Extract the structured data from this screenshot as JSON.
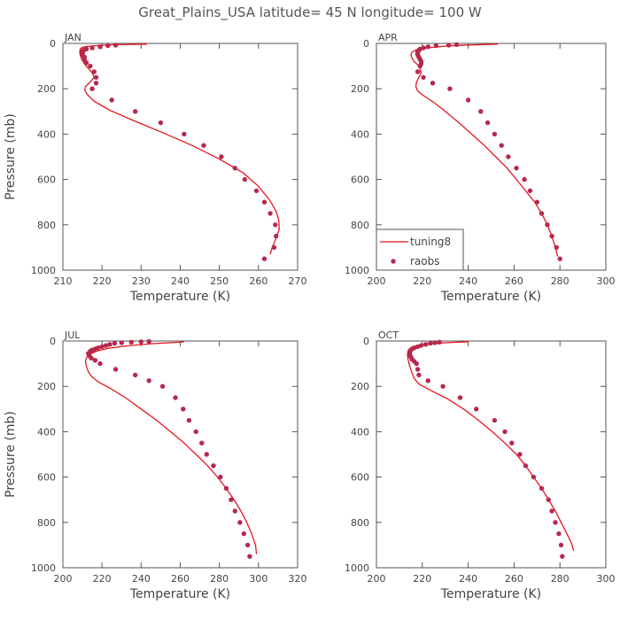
{
  "figure": {
    "title": "Great_Plains_USA   latitude= 45 N longitude= 100 W"
  },
  "legend": {
    "model_label": "tuning8",
    "obs_label": "raobs",
    "model_color": "#e8141e",
    "obs_color": "#b5294f"
  },
  "chart_data": [
    {
      "type": "line",
      "panel": "JAN",
      "xlabel": "Temperature (K)",
      "ylabel": "Pressure (mb)",
      "xlim": [
        210,
        270
      ],
      "ylim": [
        1000,
        0
      ],
      "xticks": [
        210,
        220,
        230,
        240,
        250,
        260,
        270
      ],
      "yticks": [
        0,
        200,
        400,
        600,
        800,
        1000
      ],
      "series": [
        {
          "name": "tuning8",
          "style": "line",
          "x": [
            263,
            263.5,
            264.5,
            265.3,
            265.2,
            264.5,
            262.8,
            260,
            256,
            250,
            243,
            235,
            228,
            222,
            218,
            216.2,
            215.6,
            215.8,
            217,
            218,
            217.5,
            216.5,
            215.5,
            214.8,
            214.4,
            214.3,
            214.5,
            215.5,
            218,
            223,
            231.5
          ],
          "y": [
            930,
            900,
            860,
            820,
            780,
            740,
            690,
            630,
            570,
            510,
            450,
            390,
            340,
            295,
            255,
            225,
            205,
            190,
            170,
            150,
            130,
            110,
            90,
            70,
            50,
            35,
            22,
            15,
            10,
            6,
            3
          ]
        },
        {
          "name": "raobs",
          "style": "points",
          "x": [
            261.5,
            264,
            264.5,
            264.3,
            263,
            261.5,
            259.5,
            256.5,
            254,
            250.5,
            246,
            241,
            235,
            228.5,
            222.5,
            217.5,
            218.5,
            218.5,
            218,
            217,
            216,
            215.5,
            215.5,
            215,
            215,
            215,
            215,
            215.3,
            216,
            217.5,
            219.5,
            221.5,
            223.5
          ],
          "y": [
            950,
            900,
            850,
            800,
            750,
            700,
            650,
            600,
            550,
            500,
            450,
            400,
            350,
            300,
            250,
            200,
            175,
            150,
            125,
            100,
            85,
            70,
            60,
            50,
            45,
            40,
            35,
            30,
            25,
            20,
            15,
            10,
            8
          ]
        }
      ]
    },
    {
      "type": "line",
      "panel": "APR",
      "xlabel": "Temperature (K)",
      "ylabel": "",
      "xlim": [
        200,
        300
      ],
      "ylim": [
        1000,
        0
      ],
      "xticks": [
        200,
        220,
        240,
        260,
        280,
        300
      ],
      "yticks": [
        0,
        200,
        400,
        600,
        800,
        1000
      ],
      "series": [
        {
          "name": "tuning8",
          "style": "line",
          "x": [
            279,
            278,
            276.5,
            274.5,
            272,
            269,
            265,
            261,
            257,
            252,
            247,
            241.5,
            236,
            230,
            225,
            220.5,
            218,
            217.2,
            217.5,
            218.5,
            219.5,
            219,
            218,
            216.5,
            215.5,
            215,
            215.5,
            217.5,
            222,
            230,
            240,
            253
          ],
          "y": [
            940,
            900,
            850,
            800,
            750,
            700,
            650,
            600,
            550,
            500,
            450,
            400,
            350,
            300,
            260,
            230,
            210,
            190,
            170,
            150,
            130,
            110,
            95,
            80,
            65,
            50,
            38,
            28,
            20,
            12,
            7,
            3
          ]
        },
        {
          "name": "raobs",
          "style": "points",
          "x": [
            280,
            278.5,
            276.5,
            274.5,
            272,
            270,
            267,
            264.5,
            261,
            257.5,
            254.5,
            251.5,
            248.5,
            245.5,
            240,
            232,
            224.5,
            220.5,
            218,
            219,
            219.5,
            219.5,
            219,
            218.5,
            218,
            218,
            218,
            218,
            218.5,
            219,
            220.5,
            222.5,
            226,
            231.5,
            235
          ],
          "y": [
            950,
            900,
            850,
            800,
            750,
            700,
            650,
            600,
            550,
            500,
            450,
            400,
            350,
            300,
            250,
            200,
            175,
            150,
            125,
            100,
            90,
            80,
            70,
            60,
            50,
            45,
            40,
            35,
            30,
            25,
            20,
            15,
            10,
            8,
            5
          ]
        }
      ]
    },
    {
      "type": "line",
      "panel": "JUL",
      "xlabel": "Temperature (K)",
      "ylabel": "Pressure (mb)",
      "xlim": [
        200,
        320
      ],
      "ylim": [
        1000,
        0
      ],
      "xticks": [
        200,
        220,
        240,
        260,
        280,
        300,
        320
      ],
      "yticks": [
        0,
        200,
        400,
        600,
        800,
        1000
      ],
      "series": [
        {
          "name": "tuning8",
          "style": "line",
          "x": [
            299,
            298.5,
            296.5,
            294,
            291,
            287.5,
            283.5,
            279,
            274,
            268,
            262,
            255,
            248,
            240,
            232,
            224.5,
            218,
            214.5,
            213,
            212.3,
            211.8,
            211.5,
            212,
            213.5,
            217,
            223,
            232,
            245,
            262
          ],
          "y": [
            940,
            900,
            850,
            800,
            750,
            700,
            650,
            600,
            550,
            500,
            450,
            400,
            350,
            300,
            250,
            210,
            180,
            155,
            135,
            120,
            105,
            90,
            75,
            60,
            45,
            33,
            22,
            12,
            4
          ]
        },
        {
          "name": "raobs",
          "style": "points",
          "x": [
            295.5,
            294.5,
            292.5,
            290.5,
            288,
            286,
            283.5,
            280.5,
            277,
            273.5,
            271,
            268,
            264.5,
            261.5,
            257.5,
            251,
            244,
            237,
            227,
            219,
            216.5,
            214.5,
            213.5,
            213,
            214,
            215,
            216.5,
            218,
            220,
            222,
            224,
            226.5,
            230,
            235,
            240,
            244
          ],
          "y": [
            950,
            900,
            850,
            800,
            750,
            700,
            650,
            600,
            550,
            500,
            450,
            400,
            350,
            300,
            250,
            200,
            175,
            150,
            125,
            100,
            85,
            75,
            65,
            55,
            45,
            40,
            35,
            30,
            25,
            20,
            15,
            10,
            8,
            5,
            3,
            2
          ]
        }
      ]
    },
    {
      "type": "line",
      "panel": "OCT",
      "xlabel": "Temperature (K)",
      "ylabel": "",
      "xlim": [
        200,
        300
      ],
      "ylim": [
        1000,
        0
      ],
      "xticks": [
        200,
        220,
        240,
        260,
        280,
        300
      ],
      "yticks": [
        0,
        200,
        400,
        600,
        800,
        1000
      ],
      "series": [
        {
          "name": "tuning8",
          "style": "line",
          "x": [
            286,
            285,
            283,
            280.5,
            278,
            275,
            272,
            268.5,
            265,
            261,
            256,
            250.5,
            244.5,
            238,
            231,
            224,
            218.5,
            216.5,
            215.5,
            214.8,
            214.2,
            213.8,
            213.5,
            213.8,
            215,
            217.5,
            222,
            230,
            240
          ],
          "y": [
            925,
            890,
            850,
            800,
            750,
            700,
            650,
            600,
            550,
            500,
            450,
            400,
            350,
            300,
            255,
            220,
            190,
            165,
            140,
            120,
            100,
            80,
            60,
            45,
            32,
            22,
            14,
            8,
            3
          ]
        },
        {
          "name": "raobs",
          "style": "points",
          "x": [
            281,
            280.5,
            279.5,
            278,
            276.5,
            275,
            272,
            268.5,
            265,
            262.5,
            259,
            256,
            251.5,
            243.5,
            236.5,
            229,
            222.5,
            218.5,
            218,
            217.5,
            216.5,
            215.5,
            215,
            214.5,
            214.5,
            214.5,
            215,
            215.5,
            216.5,
            218,
            219.5,
            221.5,
            223.5,
            225.5,
            227.5
          ],
          "y": [
            950,
            900,
            850,
            800,
            750,
            700,
            650,
            600,
            550,
            500,
            450,
            400,
            350,
            300,
            250,
            200,
            175,
            150,
            125,
            100,
            90,
            80,
            70,
            60,
            50,
            45,
            40,
            35,
            30,
            25,
            20,
            15,
            10,
            8,
            5
          ]
        }
      ]
    }
  ]
}
